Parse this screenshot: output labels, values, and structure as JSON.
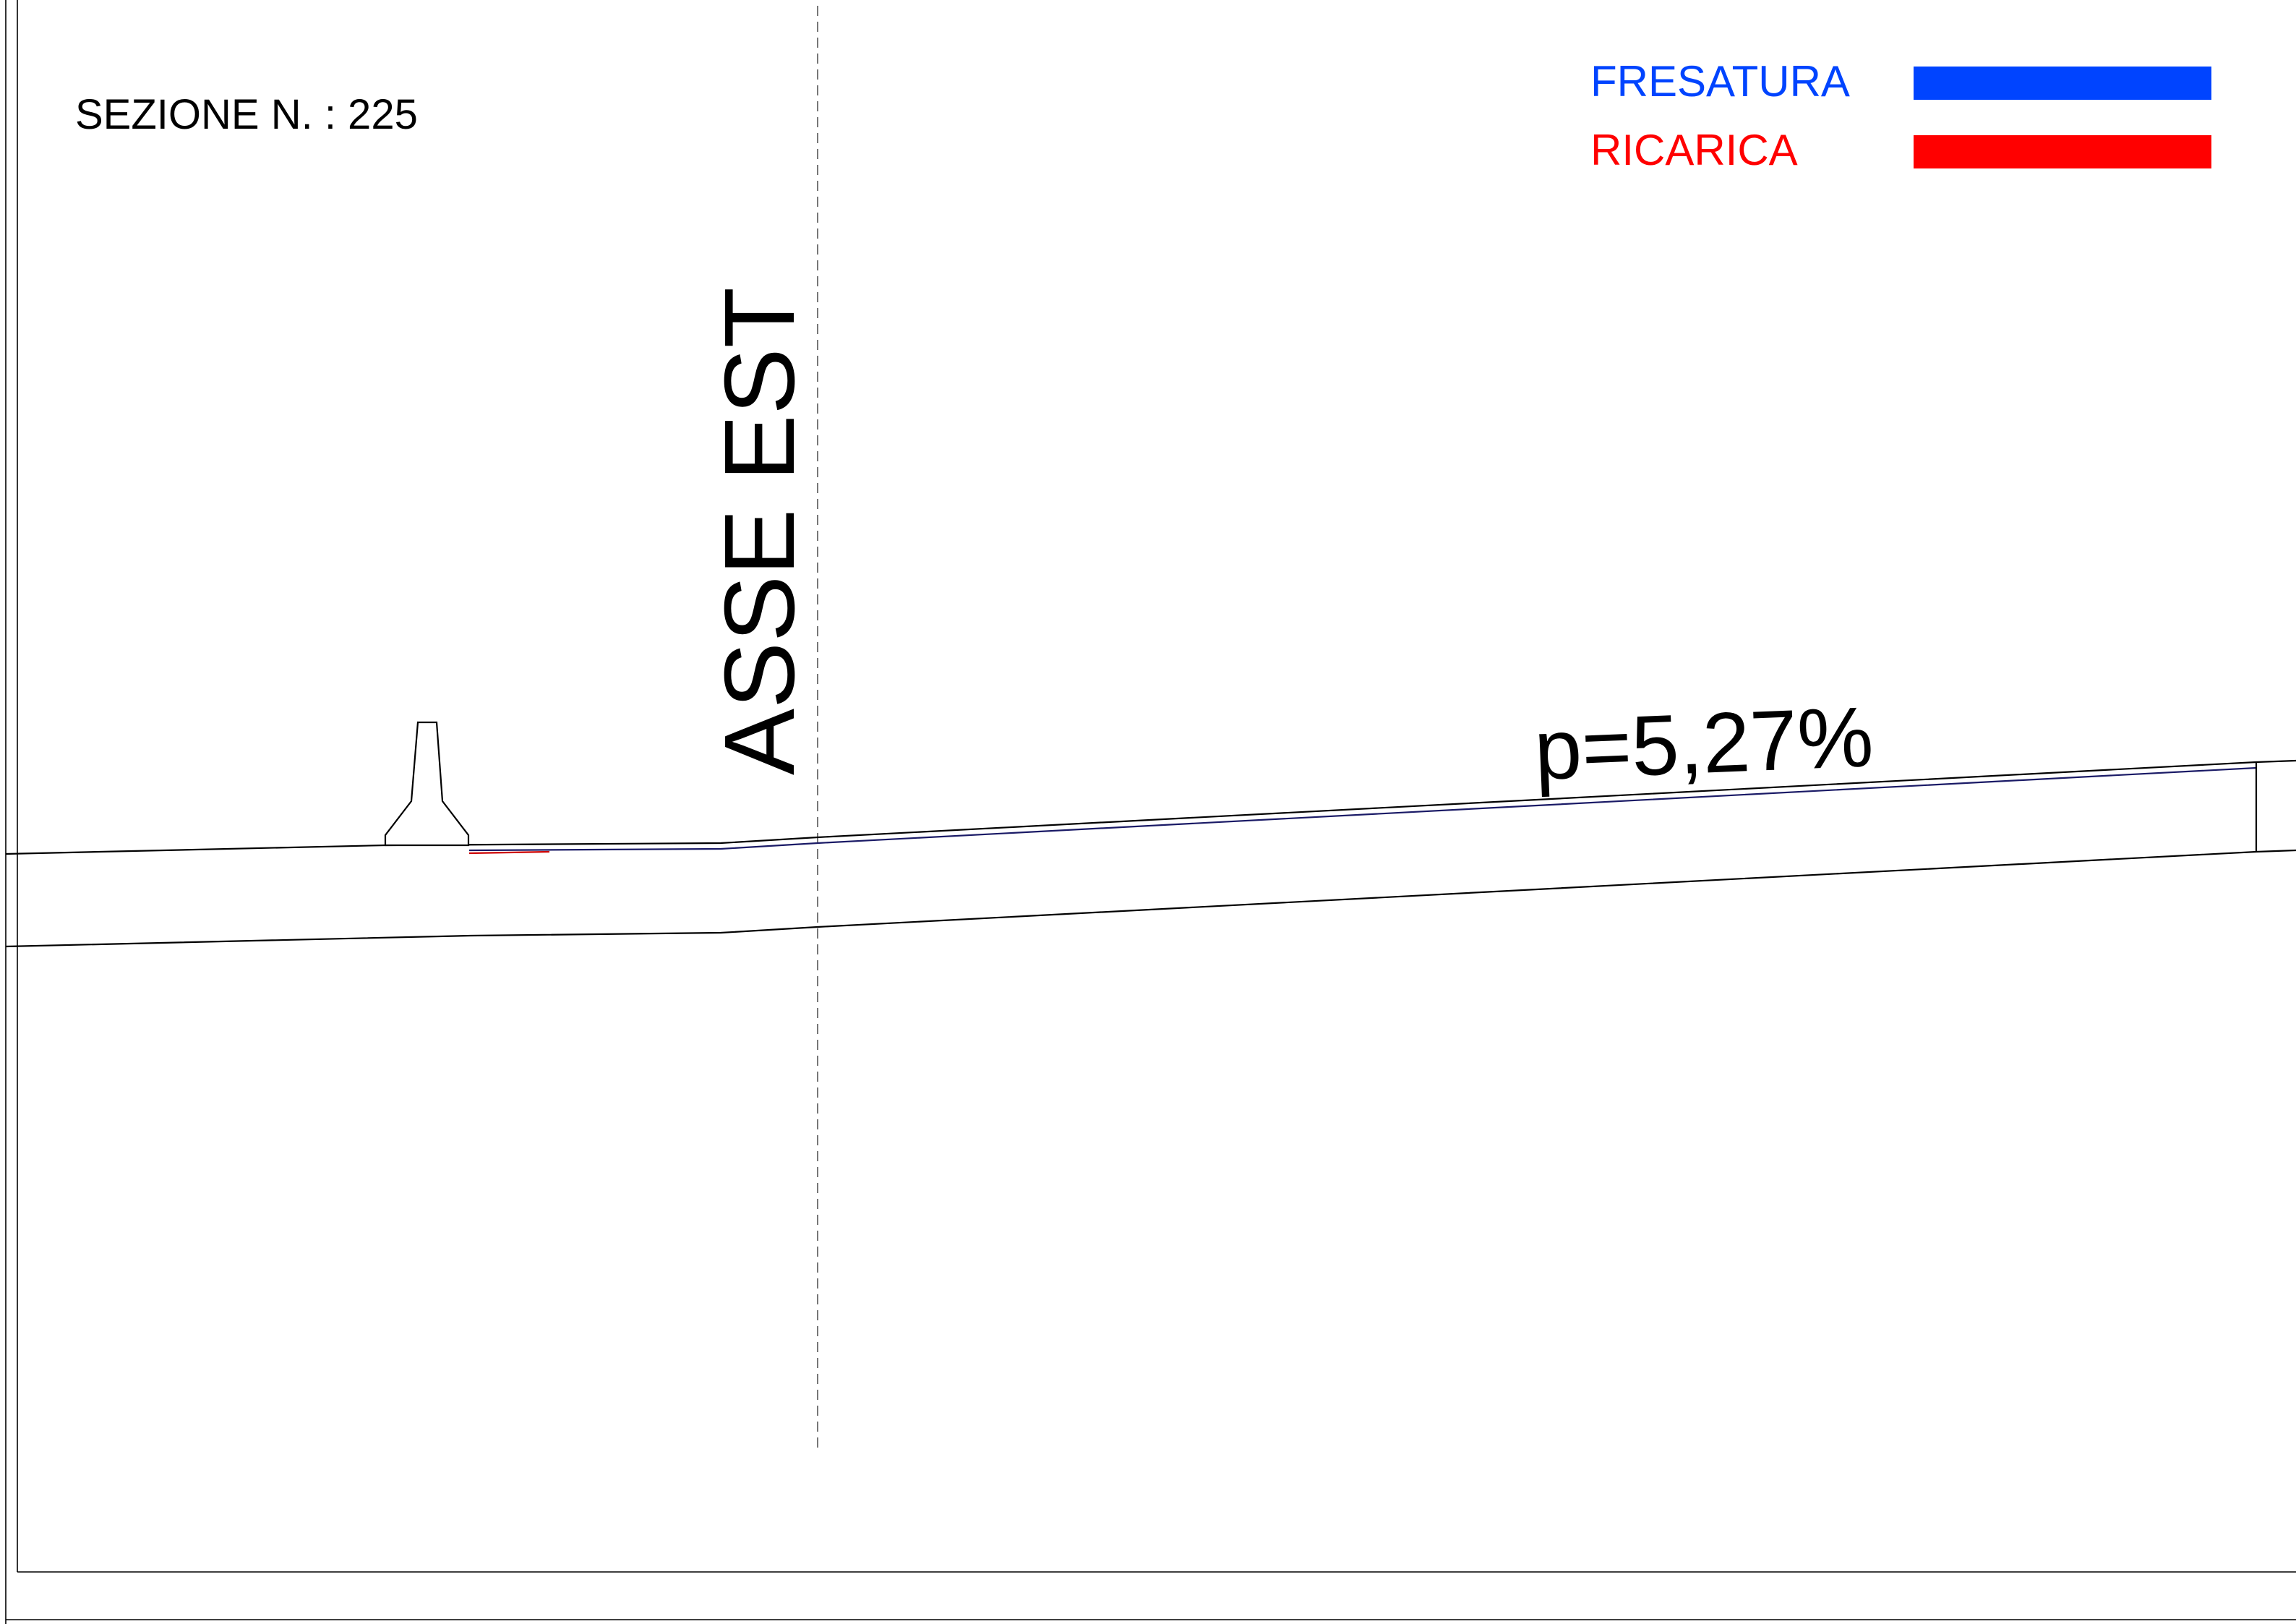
{
  "section": {
    "title": "SEZIONE N. : 225"
  },
  "legend": {
    "items": [
      {
        "label": "FRESATURA",
        "color": "#0044ff"
      },
      {
        "label": "RICARICA",
        "color": "#ff0000"
      }
    ]
  },
  "axis": {
    "label": "ASSE EST"
  },
  "slope": {
    "label": "p=5,27%"
  },
  "colors": {
    "drawing_line": "#000000",
    "centerline": "#777777",
    "milling_line": "#1a1a66",
    "recharge_line": "#cc0000",
    "background": "#ffffff"
  }
}
